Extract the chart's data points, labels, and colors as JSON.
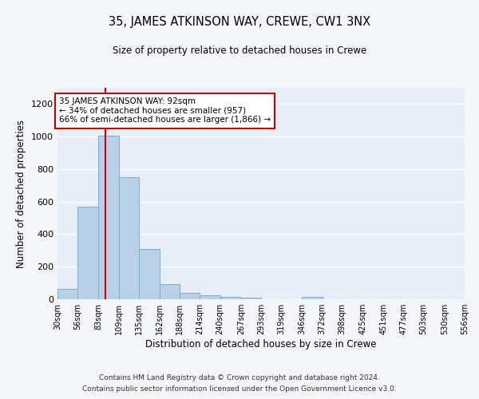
{
  "title": "35, JAMES ATKINSON WAY, CREWE, CW1 3NX",
  "subtitle": "Size of property relative to detached houses in Crewe",
  "xlabel": "Distribution of detached houses by size in Crewe",
  "ylabel": "Number of detached properties",
  "bar_color": "#b8d0e8",
  "bar_edge_color": "#7aaed0",
  "background_color": "#e8eef8",
  "grid_color": "#ffffff",
  "annotation_line_color": "#cc0000",
  "annotation_box_color": "#cc0000",
  "footer_line1": "Contains HM Land Registry data © Crown copyright and database right 2024.",
  "footer_line2": "Contains public sector information licensed under the Open Government Licence v3.0.",
  "annotation_text": "35 JAMES ATKINSON WAY: 92sqm\n← 34% of detached houses are smaller (957)\n66% of semi-detached houses are larger (1,866) →",
  "property_size": 92,
  "bin_edges": [
    30,
    56,
    83,
    109,
    135,
    162,
    188,
    214,
    240,
    267,
    293,
    319,
    346,
    372,
    398,
    425,
    451,
    477,
    503,
    530,
    556
  ],
  "bar_heights": [
    65,
    570,
    1005,
    750,
    310,
    95,
    40,
    25,
    15,
    10,
    0,
    0,
    15,
    0,
    0,
    0,
    0,
    0,
    0,
    0
  ],
  "ylim": [
    0,
    1300
  ],
  "yticks": [
    0,
    200,
    400,
    600,
    800,
    1000,
    1200
  ],
  "fig_bg": "#f5f6fa"
}
